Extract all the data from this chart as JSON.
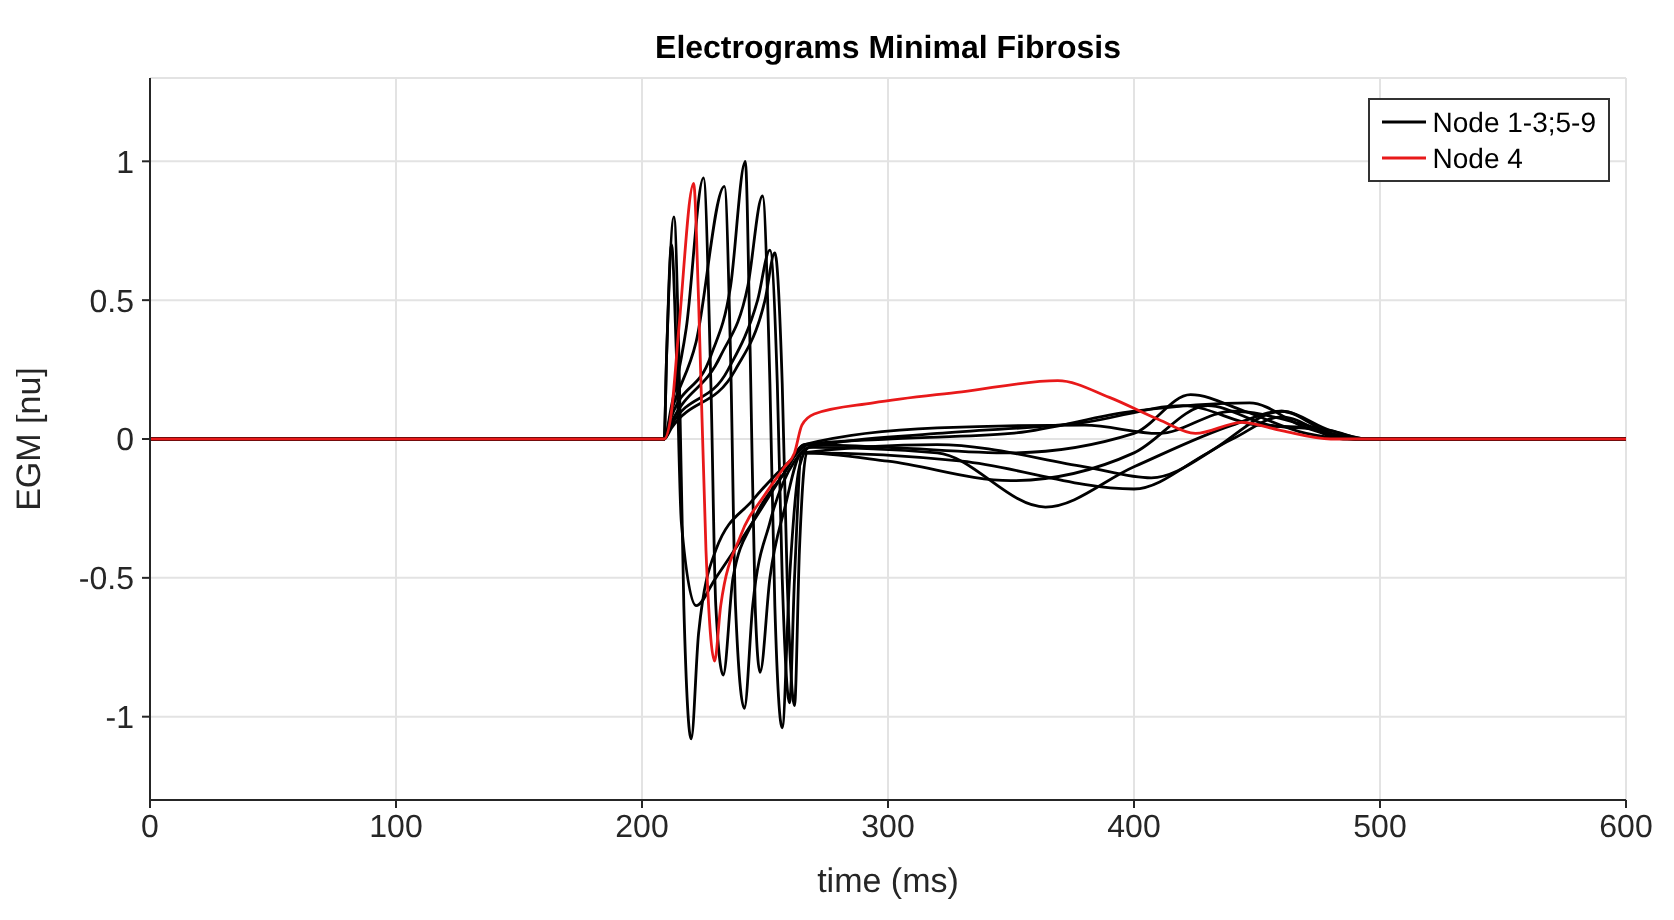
{
  "chart_data": {
    "type": "line",
    "title": "Electrograms Minimal Fibrosis",
    "xlabel": "time (ms)",
    "ylabel": "EGM [nu]",
    "xlim": [
      0,
      600
    ],
    "xticks": [
      0,
      100,
      200,
      300,
      400,
      500,
      600
    ],
    "ylim": [
      -1.3,
      1.3
    ],
    "yticks": [
      -1,
      -0.5,
      0,
      0.5,
      1
    ],
    "grid": true,
    "legend": "top right",
    "marker": "none",
    "line_style": "solid",
    "series": [
      {
        "name": "Node 1-3;5-9",
        "color": "#000000",
        "x": [
          0,
          209,
          210,
          213,
          215,
          217,
          220,
          223,
          230,
          245,
          260,
          268,
          300,
          350,
          400,
          423,
          445,
          470,
          490,
          600
        ],
        "values": [
          0,
          0,
          0.3,
          0.8,
          0.3,
          -0.6,
          -1.08,
          -0.7,
          -0.4,
          -0.22,
          -0.08,
          -0.02,
          -0.03,
          -0.05,
          0.02,
          0.16,
          0.1,
          0.02,
          0,
          0
        ]
      },
      {
        "color": "#000000",
        "x": [
          0,
          209,
          212,
          218,
          225,
          228,
          230,
          233,
          237,
          245,
          258,
          266,
          300,
          350,
          400,
          447,
          470,
          490,
          600
        ],
        "values": [
          0,
          0,
          0.12,
          0.4,
          0.94,
          0.2,
          -0.6,
          -0.85,
          -0.5,
          -0.3,
          -0.12,
          -0.02,
          0,
          0.02,
          0.1,
          0.13,
          0.04,
          0,
          0
        ]
      },
      {
        "color": "#000000",
        "x": [
          0,
          209,
          212,
          222,
          233.5,
          236,
          238,
          241.6,
          245,
          252,
          262,
          268,
          320,
          364,
          400,
          440,
          460,
          480,
          495,
          600
        ],
        "values": [
          0,
          0,
          0.1,
          0.35,
          0.91,
          0.3,
          -0.6,
          -0.97,
          -0.6,
          -0.3,
          -0.08,
          -0.03,
          -0.05,
          -0.245,
          -0.1,
          0.05,
          0.1,
          0.02,
          0,
          0
        ]
      },
      {
        "color": "#000000",
        "x": [
          0,
          209,
          212,
          228,
          236,
          242,
          244,
          246,
          248,
          252,
          258,
          265,
          320,
          380,
          407,
          440,
          460,
          485,
          600
        ],
        "values": [
          0,
          0,
          0.08,
          0.3,
          0.55,
          1.0,
          0.3,
          -0.6,
          -0.84,
          -0.5,
          -0.25,
          -0.05,
          -0.02,
          -0.1,
          -0.14,
          0,
          0.08,
          0,
          0
        ]
      },
      {
        "color": "#000000",
        "x": [
          0,
          209,
          212,
          232,
          243,
          249,
          252,
          254,
          257,
          260,
          264,
          268,
          320,
          380,
          420,
          450,
          470,
          490,
          600
        ],
        "values": [
          0,
          0,
          0.06,
          0.3,
          0.55,
          0.875,
          0.2,
          -0.6,
          -1.04,
          -0.5,
          -0.1,
          -0.03,
          0.02,
          0.06,
          0.12,
          0.05,
          0.04,
          0,
          0
        ]
      },
      {
        "color": "#000000",
        "x": [
          0,
          209,
          212,
          235,
          247,
          252,
          255,
          257,
          260,
          262,
          265,
          300,
          350,
          400,
          430,
          455,
          480,
          495,
          600
        ],
        "values": [
          0,
          0,
          0.05,
          0.25,
          0.5,
          0.68,
          0.2,
          -0.5,
          -0.95,
          -0.5,
          -0.05,
          -0.08,
          -0.15,
          -0.05,
          0.12,
          0.05,
          0.03,
          0,
          0
        ]
      },
      {
        "color": "#000000",
        "x": [
          0,
          209,
          212,
          238,
          250,
          254,
          257,
          259,
          262,
          264,
          267,
          330,
          400,
          430,
          460,
          480,
          495,
          600
        ],
        "values": [
          0,
          0,
          0.04,
          0.25,
          0.5,
          0.67,
          0.2,
          -0.5,
          -0.96,
          -0.4,
          -0.05,
          -0.08,
          -0.18,
          -0.05,
          0.1,
          0.03,
          0,
          0
        ]
      },
      {
        "color": "#000000",
        "x": [
          0,
          209,
          210,
          212,
          214,
          216,
          222,
          230,
          245,
          258,
          266,
          320,
          380,
          410,
          440,
          470,
          490,
          600
        ],
        "values": [
          0,
          0,
          0.3,
          0.7,
          0.3,
          -0.3,
          -0.6,
          -0.5,
          -0.3,
          -0.12,
          -0.02,
          0.04,
          0.05,
          0.02,
          0.1,
          0.05,
          0,
          0
        ]
      },
      {
        "name": "Node 4",
        "color": "#e8191a",
        "x": [
          0,
          209,
          212,
          215,
          221,
          223,
          226,
          229.5,
          232,
          240,
          250,
          258,
          262,
          265,
          270,
          294,
          330,
          369,
          390,
          410,
          425,
          444,
          460,
          480,
          600
        ],
        "values": [
          0,
          0,
          0.1,
          0.4,
          0.92,
          0.5,
          -0.4,
          -0.8,
          -0.6,
          -0.35,
          -0.2,
          -0.1,
          -0.05,
          0.05,
          0.09,
          0.13,
          0.17,
          0.21,
          0.15,
          0.07,
          0.02,
          0.06,
          0.03,
          0,
          0
        ]
      }
    ]
  }
}
